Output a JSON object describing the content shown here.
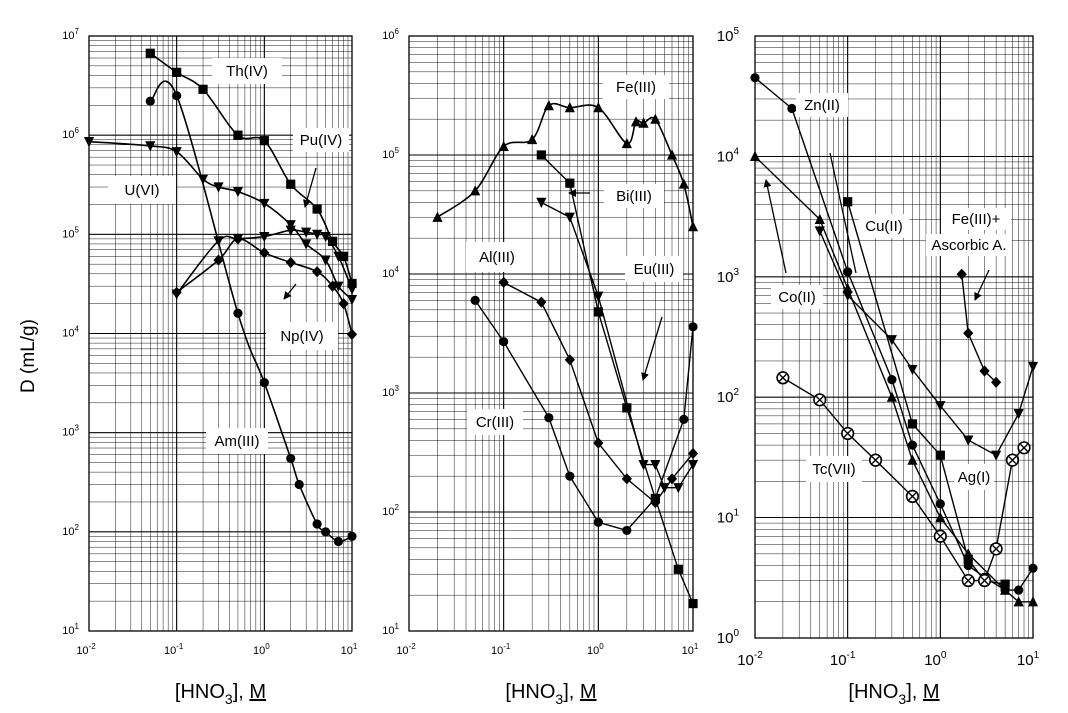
{
  "figure": {
    "y_axis_label": "D (mL/g)",
    "x_axis_label_pre": "[HNO",
    "x_axis_label_sub": "3",
    "x_axis_label_post": "], ",
    "x_axis_label_unit": "M"
  },
  "chart_data": [
    {
      "type": "scatter",
      "name": "panel-actinides",
      "xscale": "log",
      "yscale": "log",
      "xlim": [
        0.01,
        10
      ],
      "ylim": [
        10,
        10000000
      ],
      "xticks": [
        {
          "v": 0.01,
          "m": "10",
          "e": "-2"
        },
        {
          "v": 0.1,
          "m": "10",
          "e": "-1"
        },
        {
          "v": 1,
          "m": "10",
          "e": "0"
        },
        {
          "v": 10,
          "m": "10",
          "e": "1"
        }
      ],
      "yticks": [
        {
          "v": 10,
          "m": "10",
          "e": "1"
        },
        {
          "v": 100,
          "m": "10",
          "e": "2"
        },
        {
          "v": 1000,
          "m": "10",
          "e": "3"
        },
        {
          "v": 10000,
          "m": "10",
          "e": "4"
        },
        {
          "v": 100000,
          "m": "10",
          "e": "5"
        },
        {
          "v": 1000000,
          "m": "10",
          "e": "6"
        },
        {
          "v": 10000000,
          "m": "10",
          "e": "7"
        }
      ],
      "xlabel": "[HNO3], M",
      "ylabel": "D (mL/g)",
      "series": [
        {
          "name": "Th(IV)",
          "marker": "square",
          "connect": "curve",
          "points": [
            [
              0.05,
              6700000
            ],
            [
              0.1,
              4300000
            ],
            [
              0.2,
              2900000
            ],
            [
              0.5,
              1000000
            ],
            [
              1,
              880000
            ],
            [
              2,
              320000
            ],
            [
              4,
              180000
            ],
            [
              6,
              85000
            ],
            [
              8,
              60000
            ],
            [
              10,
              32000
            ]
          ]
        },
        {
          "name": "U(VI)",
          "marker": "tri-down",
          "connect": "curve",
          "points": [
            [
              0.01,
              860000
            ],
            [
              0.05,
              780000
            ],
            [
              0.1,
              680000
            ],
            [
              0.2,
              360000
            ],
            [
              0.3,
              300000
            ],
            [
              0.5,
              270000
            ],
            [
              1,
              205000
            ],
            [
              2,
              125000
            ],
            [
              3,
              80000
            ],
            [
              5,
              55000
            ],
            [
              7,
              30000
            ],
            [
              10,
              22000
            ]
          ]
        },
        {
          "name": "Pu(IV)",
          "marker": "tri-down",
          "connect": "curve",
          "points": [
            [
              0.1,
              25000
            ],
            [
              0.3,
              86000
            ],
            [
              0.5,
              90000
            ],
            [
              1,
              95000
            ],
            [
              2,
              110000
            ],
            [
              3,
              105000
            ],
            [
              4,
              100000
            ],
            [
              5,
              95000
            ],
            [
              7,
              60000
            ],
            [
              10,
              28000
            ]
          ]
        },
        {
          "name": "Np(IV)",
          "marker": "diamond",
          "connect": "curve",
          "points": [
            [
              0.1,
              26000
            ],
            [
              0.3,
              55000
            ],
            [
              0.5,
              90000
            ],
            [
              1,
              65000
            ],
            [
              2,
              52000
            ],
            [
              4,
              42000
            ],
            [
              6,
              30000
            ],
            [
              8,
              20000
            ],
            [
              10,
              9800
            ]
          ]
        },
        {
          "name": "Am(III)",
          "marker": "circle",
          "connect": "curve",
          "points": [
            [
              0.05,
              2200000
            ],
            [
              0.1,
              2500000
            ],
            [
              0.5,
              16000
            ],
            [
              1,
              3200
            ],
            [
              2,
              550
            ],
            [
              2.5,
              300
            ],
            [
              4,
              120
            ],
            [
              5,
              100
            ],
            [
              7,
              80
            ],
            [
              10,
              90
            ]
          ]
        }
      ],
      "labels": [
        {
          "text": "Th(IV)",
          "series": "Th(IV)"
        },
        {
          "text": "Pu(IV)",
          "series": "Pu(IV)"
        },
        {
          "text": "U(VI)",
          "series": "U(VI)"
        },
        {
          "text": "Np(IV)",
          "series": "Np(IV)"
        },
        {
          "text": "Am(III)",
          "series": "Am(III)"
        }
      ]
    },
    {
      "type": "scatter",
      "name": "panel-trivalent",
      "xscale": "log",
      "yscale": "log",
      "xlim": [
        0.01,
        10
      ],
      "ylim": [
        10,
        1000000
      ],
      "xticks": [
        {
          "v": 0.01,
          "m": "10",
          "e": "-2"
        },
        {
          "v": 0.1,
          "m": "10",
          "e": "-1"
        },
        {
          "v": 1,
          "m": "10",
          "e": "0"
        },
        {
          "v": 10,
          "m": "10",
          "e": "1"
        }
      ],
      "yticks": [
        {
          "v": 10,
          "m": "10",
          "e": "1"
        },
        {
          "v": 100,
          "m": "10",
          "e": "2"
        },
        {
          "v": 1000,
          "m": "10",
          "e": "3"
        },
        {
          "v": 10000,
          "m": "10",
          "e": "4"
        },
        {
          "v": 100000,
          "m": "10",
          "e": "5"
        },
        {
          "v": 1000000,
          "m": "10",
          "e": "6"
        }
      ],
      "xlabel": "[HNO3], M",
      "ylabel": "",
      "series": [
        {
          "name": "Fe(III)",
          "marker": "triangle",
          "connect": "curve",
          "points": [
            [
              0.02,
              30000
            ],
            [
              0.05,
              50000
            ],
            [
              0.1,
              118000
            ],
            [
              0.2,
              135000
            ],
            [
              0.3,
              260000
            ],
            [
              0.5,
              250000
            ],
            [
              1,
              250000
            ],
            [
              2,
              125000
            ],
            [
              2.5,
              190000
            ],
            [
              3,
              185000
            ],
            [
              4,
              200000
            ],
            [
              6,
              100000
            ],
            [
              8,
              57000
            ],
            [
              10,
              25000
            ]
          ]
        },
        {
          "name": "Bi(III)",
          "marker": "square",
          "connect": "line",
          "points": [
            [
              0.25,
              100000
            ],
            [
              0.5,
              58000
            ],
            [
              1,
              4800
            ],
            [
              2,
              750
            ],
            [
              4,
              130
            ],
            [
              7,
              33
            ],
            [
              10,
              17
            ]
          ]
        },
        {
          "name": "Eu(III)",
          "marker": "tri-down",
          "connect": "line",
          "points": [
            [
              0.25,
              40000
            ],
            [
              0.5,
              30000
            ],
            [
              1,
              6500
            ],
            [
              3,
              250
            ],
            [
              4,
              250
            ],
            [
              5,
              160
            ],
            [
              7,
              160
            ],
            [
              10,
              250
            ]
          ]
        },
        {
          "name": "Al(III)",
          "marker": "diamond",
          "connect": "line",
          "points": [
            [
              0.1,
              8500
            ],
            [
              0.25,
              5800
            ],
            [
              0.5,
              1900
            ],
            [
              1,
              380
            ],
            [
              2,
              190
            ],
            [
              4,
              120
            ],
            [
              6,
              190
            ],
            [
              10,
              310
            ]
          ]
        },
        {
          "name": "Cr(III)",
          "marker": "circle",
          "connect": "line",
          "points": [
            [
              0.05,
              6000
            ],
            [
              0.1,
              2700
            ],
            [
              0.3,
              620
            ],
            [
              0.5,
              200
            ],
            [
              1,
              82
            ],
            [
              2,
              70
            ],
            [
              4,
              130
            ],
            [
              8,
              600
            ],
            [
              10,
              3600
            ]
          ]
        }
      ],
      "labels": [
        {
          "text": "Fe(III)",
          "series": "Fe(III)"
        },
        {
          "text": "Bi(III)",
          "series": "Bi(III)"
        },
        {
          "text": "Al(III)",
          "series": "Al(III)"
        },
        {
          "text": "Eu(III)",
          "series": "Eu(III)"
        },
        {
          "text": "Cr(III)",
          "series": "Cr(III)"
        }
      ]
    },
    {
      "type": "scatter",
      "name": "panel-other",
      "xscale": "log",
      "yscale": "log",
      "xlim": [
        0.01,
        10
      ],
      "ylim": [
        1,
        100000
      ],
      "xticks": [
        {
          "v": 0.01,
          "m": "10",
          "e": "-2"
        },
        {
          "v": 0.1,
          "m": "10",
          "e": "-1"
        },
        {
          "v": 1,
          "m": "10",
          "e": "0"
        },
        {
          "v": 10,
          "m": "10",
          "e": "1"
        }
      ],
      "yticks": [
        {
          "v": 1,
          "m": "10",
          "e": "0"
        },
        {
          "v": 10,
          "m": "10",
          "e": "1"
        },
        {
          "v": 100,
          "m": "10",
          "e": "2"
        },
        {
          "v": 1000,
          "m": "10",
          "e": "3"
        },
        {
          "v": 10000,
          "m": "10",
          "e": "4"
        },
        {
          "v": 100000,
          "m": "10",
          "e": "5"
        }
      ],
      "xlabel": "[HNO3], M",
      "ylabel": "",
      "series": [
        {
          "name": "Zn(II)",
          "marker": "circle",
          "connect": "line",
          "points": [
            [
              0.01,
              45000
            ],
            [
              0.025,
              25000
            ],
            [
              0.1,
              1100
            ],
            [
              0.3,
              140
            ],
            [
              0.5,
              40
            ],
            [
              1,
              13
            ],
            [
              2,
              4
            ],
            [
              3,
              3.2
            ],
            [
              5,
              2.5
            ],
            [
              7,
              2.5
            ],
            [
              10,
              3.8
            ]
          ]
        },
        {
          "name": "Cu(II)",
          "marker": "square",
          "connect": "line",
          "points": [
            [
              0.1,
              4200
            ],
            [
              0.5,
              60
            ],
            [
              1,
              33
            ],
            [
              2,
              4.5
            ],
            [
              3,
              3
            ],
            [
              5,
              2.8
            ]
          ]
        },
        {
          "name": "Co(II)",
          "marker": "triangle",
          "connect": "line",
          "points": [
            [
              0.01,
              10000
            ],
            [
              0.05,
              3000
            ],
            [
              0.1,
              800
            ],
            [
              0.3,
              100
            ],
            [
              0.5,
              30
            ],
            [
              1,
              10
            ],
            [
              2,
              5
            ],
            [
              5,
              2.5
            ],
            [
              7,
              2
            ],
            [
              10,
              2
            ]
          ]
        },
        {
          "name": "Ag(I)",
          "marker": "tri-down",
          "connect": "line",
          "points": [
            [
              0.05,
              2400
            ],
            [
              0.1,
              700
            ],
            [
              0.3,
              300
            ],
            [
              0.5,
              170
            ],
            [
              1,
              85
            ],
            [
              2,
              44
            ],
            [
              4,
              33
            ],
            [
              7,
              73
            ],
            [
              10,
              180
            ]
          ]
        },
        {
          "name": "Tc(VII)",
          "marker": "circle-x",
          "connect": "line",
          "points": [
            [
              0.02,
              145
            ],
            [
              0.05,
              95
            ],
            [
              0.1,
              50
            ],
            [
              0.2,
              30
            ],
            [
              0.5,
              15
            ],
            [
              1,
              7
            ],
            [
              2,
              3
            ],
            [
              3,
              3
            ],
            [
              4,
              5.5
            ],
            [
              6,
              30
            ],
            [
              8,
              38
            ]
          ]
        },
        {
          "name": "Fe(III)+ Ascorbic A.",
          "marker": "diamond",
          "connect": "line",
          "points": [
            [
              1.7,
              1050
            ],
            [
              2,
              340
            ],
            [
              3,
              165
            ],
            [
              4,
              133
            ]
          ]
        }
      ],
      "labels": [
        {
          "text": "Zn(II)",
          "series": "Zn(II)"
        },
        {
          "text": "Cu(II)",
          "series": "Cu(II)"
        },
        {
          "text": "Fe(III)+",
          "series": "Fe(III)+ Ascorbic A."
        },
        {
          "text": "Ascorbic A.",
          "series": "Fe(III)+ Ascorbic A."
        },
        {
          "text": "Co(II)",
          "series": "Co(II)"
        },
        {
          "text": "Tc(VII)",
          "series": "Tc(VII)"
        },
        {
          "text": "Ag(I)",
          "series": "Ag(I)"
        }
      ]
    }
  ]
}
